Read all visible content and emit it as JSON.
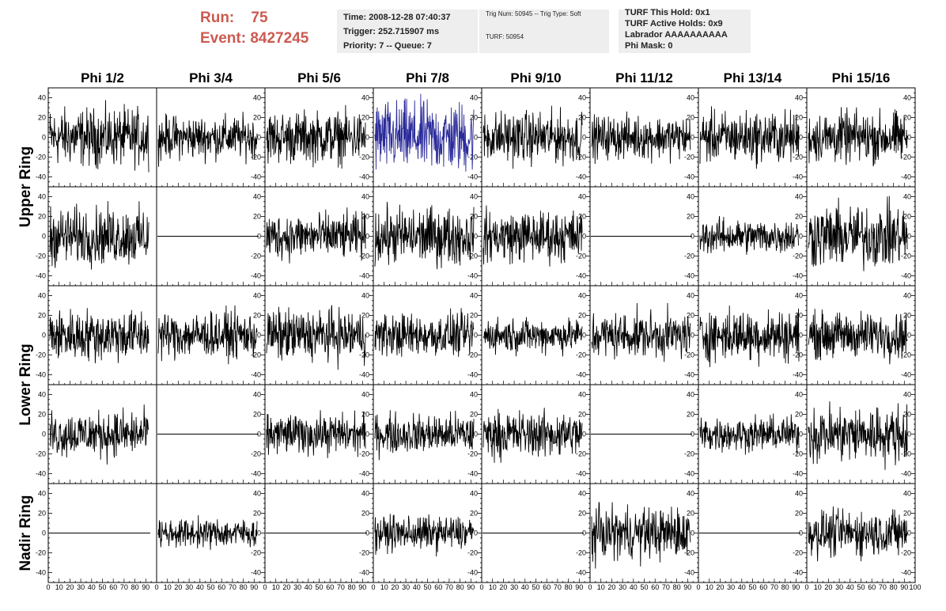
{
  "header": {
    "run_label": "Run:",
    "run_value": "75",
    "event_label": "Event:",
    "event_value": "8427245"
  },
  "info_time": {
    "time": "Time: 2008-12-28 07:40:37",
    "trigger": "Trigger: 252.715907 ms",
    "priority": "Priority: 7 -- Queue: 7"
  },
  "info_trig": {
    "trig": "Trig Num: 50945 -- Trig Type: Soft",
    "turf": "TURF: 50954"
  },
  "info_turf": {
    "this_hold": "TURF This Hold: 0x1",
    "active_holds": "TURF Active Holds: 0x9",
    "labrador": "Labrador AAAAAAAAAA",
    "phi_mask": "Phi Mask: 0"
  },
  "chart_data": {
    "type": "line",
    "phi_labels": [
      "Phi 1/2",
      "Phi 3/4",
      "Phi 5/6",
      "Phi 7/8",
      "Phi 9/10",
      "Phi 11/12",
      "Phi 13/14",
      "Phi 15/16"
    ],
    "ring_labels": [
      "Upper Ring",
      "Lower Ring",
      "Nadir Ring"
    ],
    "xlim": [
      0,
      100
    ],
    "ylim": [
      -50,
      50
    ],
    "ytick_labels": [
      "40",
      "20",
      "0",
      "-20",
      "-40"
    ],
    "xtick_labels": [
      "0",
      "10",
      "20",
      "30",
      "40",
      "50",
      "60",
      "70",
      "80",
      "90",
      "100"
    ],
    "trace_color": "#000000",
    "highlight_color": "#2a2a9a",
    "highlight_panel": [
      0,
      3
    ],
    "panel_rows": [
      {
        "amplitude": [
          20,
          15,
          18,
          25,
          18,
          15,
          18,
          18
        ]
      },
      {
        "amplitude": [
          20,
          0,
          16,
          20,
          18,
          0,
          12,
          22
        ]
      },
      {
        "amplitude": [
          18,
          16,
          18,
          15,
          12,
          16,
          18,
          16
        ]
      },
      {
        "amplitude": [
          16,
          0,
          14,
          14,
          16,
          0,
          12,
          20
        ]
      },
      {
        "amplitude": [
          0,
          10,
          0,
          12,
          0,
          18,
          0,
          16
        ]
      }
    ]
  }
}
